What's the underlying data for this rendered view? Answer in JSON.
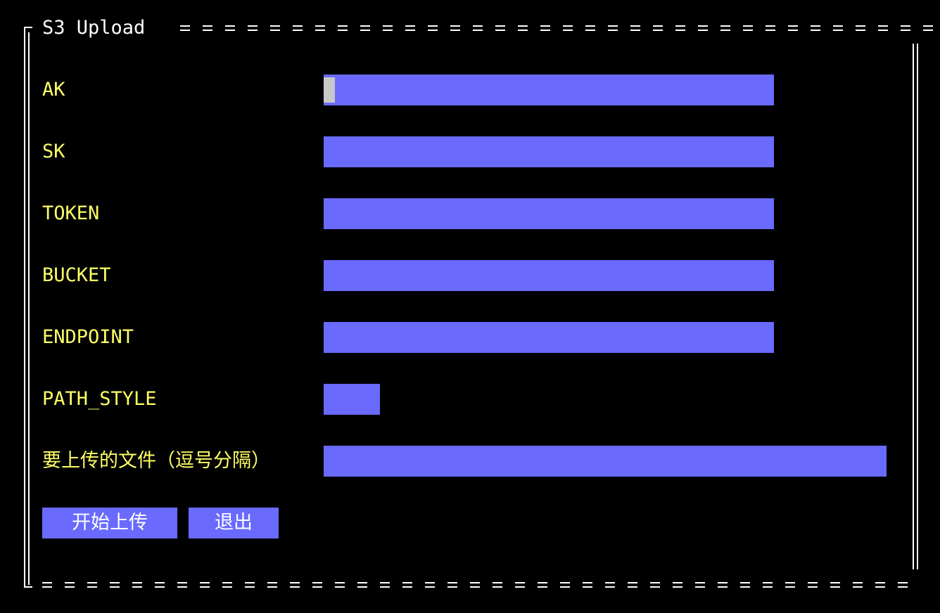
{
  "window": {
    "title": "S3 Upload"
  },
  "form": {
    "fields": [
      {
        "label": "AK",
        "value": ""
      },
      {
        "label": "SK",
        "value": ""
      },
      {
        "label": "TOKEN",
        "value": ""
      },
      {
        "label": "BUCKET",
        "value": ""
      },
      {
        "label": "ENDPOINT",
        "value": ""
      },
      {
        "label": "PATH_STYLE",
        "value": "true"
      },
      {
        "label": "要上传的文件（逗号分隔）",
        "value": ""
      }
    ]
  },
  "buttons": {
    "start_upload": "开始上传",
    "exit": "退出"
  },
  "colors": {
    "background": "#000000",
    "border": "#ffffff",
    "label": "#ffff66",
    "field_bg": "#6a6aff",
    "cursor": "#c8c8c8"
  }
}
